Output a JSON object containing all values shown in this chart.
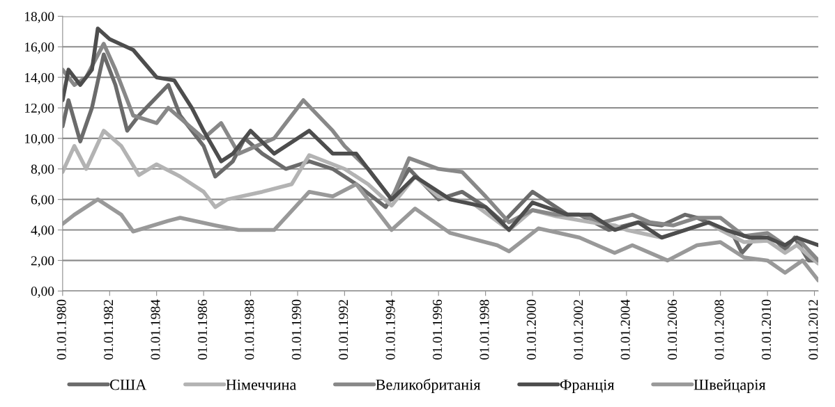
{
  "chart_data": {
    "type": "line",
    "grid": "y",
    "legend": "bottom",
    "line_style": "solid",
    "marker": "none",
    "xlim": [
      "1980-01-01",
      "2012-03-01"
    ],
    "xticks": [
      {
        "value": "1980-01-01",
        "label": "01.01.1980"
      },
      {
        "value": "1982-01-01",
        "label": "01.01.1982"
      },
      {
        "value": "1984-01-01",
        "label": "01.01.1984"
      },
      {
        "value": "1986-01-01",
        "label": "01.01.1986"
      },
      {
        "value": "1988-01-01",
        "label": "01.01.1988"
      },
      {
        "value": "1990-01-01",
        "label": "01.01.1990"
      },
      {
        "value": "1992-01-01",
        "label": "01.01.1992"
      },
      {
        "value": "1994-01-01",
        "label": "01.01.1994"
      },
      {
        "value": "1996-01-01",
        "label": "01.01.1996"
      },
      {
        "value": "1998-01-01",
        "label": "01.01.1998"
      },
      {
        "value": "2000-01-01",
        "label": "01.01.2000"
      },
      {
        "value": "2002-01-01",
        "label": "01.01.2002"
      },
      {
        "value": "2004-01-01",
        "label": "01.01.2004"
      },
      {
        "value": "2006-01-01",
        "label": "01.01.2006"
      },
      {
        "value": "2008-01-01",
        "label": "01.01.2008"
      },
      {
        "value": "2010-01-01",
        "label": "01.01.2010"
      },
      {
        "value": "2012-01-01",
        "label": "01.01.2012"
      }
    ],
    "ylim": [
      0,
      18
    ],
    "yticks": [
      {
        "value": 0,
        "label": "0,00"
      },
      {
        "value": 2,
        "label": "2,00"
      },
      {
        "value": 4,
        "label": "4,00"
      },
      {
        "value": 6,
        "label": "6,00"
      },
      {
        "value": 8,
        "label": "8,00"
      },
      {
        "value": 10,
        "label": "10,00"
      },
      {
        "value": 12,
        "label": "12,00"
      },
      {
        "value": 14,
        "label": "14,00"
      },
      {
        "value": 16,
        "label": "16,00"
      },
      {
        "value": 18,
        "label": "18,00"
      }
    ],
    "series": [
      {
        "name": "США",
        "color": "#6b6b6b",
        "x": [
          "1980-01",
          "1980-04",
          "1980-10",
          "1981-04",
          "1981-10",
          "1982-04",
          "1982-10",
          "1983-04",
          "1984-07",
          "1985-01",
          "1986-01",
          "1986-07",
          "1987-04",
          "1987-10",
          "1988-07",
          "1989-07",
          "1990-07",
          "1991-07",
          "1992-07",
          "1993-10",
          "1994-10",
          "1996-01",
          "1997-01",
          "1998-01",
          "1998-10",
          "2000-01",
          "2001-07",
          "2002-01",
          "2003-04",
          "2004-07",
          "2005-07",
          "2006-07",
          "2007-01",
          "2008-07",
          "2008-12",
          "2009-07",
          "2010-04",
          "2010-10",
          "2011-03",
          "2011-10",
          "2012-03"
        ],
        "values": [
          10.8,
          12.5,
          9.8,
          12,
          15.5,
          13.5,
          10.5,
          11.5,
          13.5,
          11.5,
          9.5,
          7.5,
          8.5,
          10,
          9,
          8,
          8.5,
          8,
          7,
          5.5,
          8,
          6,
          6.5,
          5.5,
          4.5,
          6.5,
          5,
          5,
          4,
          4.5,
          4.3,
          5,
          4.8,
          3.8,
          2.5,
          3.5,
          3.5,
          2.7,
          3.5,
          2,
          2
        ]
      },
      {
        "name": "Німеччина",
        "color": "#b3b3b3",
        "x": [
          "1980-01",
          "1980-07",
          "1981-01",
          "1981-10",
          "1982-07",
          "1983-04",
          "1984-01",
          "1985-01",
          "1986-01",
          "1986-07",
          "1987-01",
          "1988-07",
          "1989-10",
          "1990-07",
          "1992-01",
          "1993-01",
          "1994-01",
          "1995-01",
          "1996-01",
          "1997-07",
          "1999-01",
          "2000-01",
          "2001-01",
          "2002-07",
          "2003-07",
          "2004-01",
          "2005-07",
          "2006-07",
          "2007-07",
          "2008-01",
          "2009-01",
          "2010-01",
          "2010-10",
          "2011-04",
          "2012-03"
        ],
        "values": [
          7.8,
          9.5,
          8,
          10.5,
          9.5,
          7.6,
          8.3,
          7.5,
          6.5,
          5.5,
          6,
          6.5,
          7,
          8.9,
          8,
          7,
          5.6,
          7.5,
          6.2,
          5.7,
          4,
          5.3,
          4.9,
          4.5,
          4.3,
          4,
          3.5,
          4,
          4.5,
          4,
          3.2,
          3.3,
          2.5,
          3,
          1.8
        ]
      },
      {
        "name": "Великобританія",
        "color": "#888888",
        "x": [
          "1980-01",
          "1980-07",
          "1981-01",
          "1981-10",
          "1982-04",
          "1983-01",
          "1984-01",
          "1984-07",
          "1986-01",
          "1986-10",
          "1987-07",
          "1989-01",
          "1990-04",
          "1991-07",
          "1992-01",
          "1993-01",
          "1994-01",
          "1994-10",
          "1996-01",
          "1997-01",
          "1998-01",
          "1999-01",
          "2000-01",
          "2001-01",
          "2002-01",
          "2003-01",
          "2004-04",
          "2005-01",
          "2006-01",
          "2007-01",
          "2008-01",
          "2009-01",
          "2010-01",
          "2010-10",
          "2011-04",
          "2012-03"
        ],
        "values": [
          14.5,
          13.5,
          14,
          16.2,
          14.5,
          11.5,
          11,
          12,
          10,
          11,
          9,
          10,
          12.5,
          10.5,
          9.5,
          8,
          6,
          8.7,
          8,
          7.8,
          6.2,
          4.5,
          5.3,
          5,
          5,
          4.5,
          5,
          4.5,
          4.3,
          4.8,
          4.8,
          3.6,
          3.8,
          3,
          3.5,
          2
        ]
      },
      {
        "name": "Франція",
        "color": "#4d4d4d",
        "x": [
          "1980-01",
          "1980-04",
          "1980-10",
          "1981-04",
          "1981-07",
          "1982-01",
          "1983-01",
          "1984-01",
          "1984-10",
          "1985-07",
          "1986-01",
          "1986-10",
          "1987-04",
          "1988-01",
          "1989-01",
          "1990-07",
          "1991-07",
          "1992-07",
          "1994-01",
          "1995-01",
          "1996-07",
          "1998-01",
          "1999-01",
          "2000-01",
          "2001-07",
          "2002-07",
          "2003-07",
          "2004-07",
          "2005-07",
          "2006-07",
          "2007-07",
          "2008-04",
          "2009-04",
          "2010-01",
          "2010-10",
          "2011-04",
          "2012-03"
        ],
        "values": [
          12.5,
          14.5,
          13.5,
          14.5,
          17.2,
          16.5,
          15.8,
          14,
          13.8,
          12,
          10.5,
          8.5,
          9,
          10.5,
          9,
          10.5,
          9,
          9,
          6,
          7.5,
          6,
          5.5,
          4,
          5.8,
          5,
          5,
          4,
          4.5,
          3.5,
          4,
          4.5,
          4,
          3.5,
          3.5,
          3,
          3.5,
          3
        ]
      },
      {
        "name": "Швейцарія",
        "color": "#999999",
        "x": [
          "1980-01",
          "1980-07",
          "1981-07",
          "1982-07",
          "1983-01",
          "1984-07",
          "1985-01",
          "1986-07",
          "1987-07",
          "1989-01",
          "1990-07",
          "1991-07",
          "1992-07",
          "1994-01",
          "1995-01",
          "1996-07",
          "1998-07",
          "1999-01",
          "2000-04",
          "2002-01",
          "2003-07",
          "2004-04",
          "2005-10",
          "2007-01",
          "2008-01",
          "2009-01",
          "2010-01",
          "2010-10",
          "2011-07",
          "2012-03"
        ],
        "values": [
          4.4,
          5,
          6,
          5,
          3.9,
          4.6,
          4.8,
          4.3,
          4,
          4,
          6.5,
          6.2,
          7,
          4,
          5.4,
          3.8,
          3,
          2.6,
          4.1,
          3.5,
          2.5,
          3,
          2,
          3,
          3.2,
          2.2,
          2,
          1.2,
          2,
          0.7
        ]
      }
    ]
  }
}
